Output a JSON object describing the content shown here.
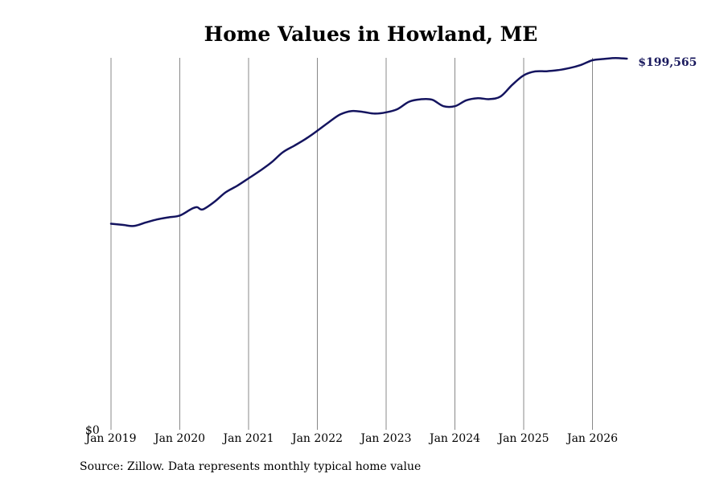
{
  "chart_data": {
    "type": "line",
    "title": "Home Values in Howland, ME",
    "xlabel": "",
    "ylabel": "",
    "grid": "vertical",
    "ylim": [
      0,
      200000
    ],
    "y_ticks": [
      {
        "value": 0,
        "label": "$0"
      }
    ],
    "x_ticks": [
      {
        "value": "2019-01",
        "label": "Jan 2019"
      },
      {
        "value": "2020-01",
        "label": "Jan 2020"
      },
      {
        "value": "2021-01",
        "label": "Jan 2021"
      },
      {
        "value": "2022-01",
        "label": "Jan 2022"
      },
      {
        "value": "2023-01",
        "label": "Jan 2023"
      },
      {
        "value": "2024-01",
        "label": "Jan 2024"
      },
      {
        "value": "2025-01",
        "label": "Jan 2025"
      },
      {
        "value": "2026-01",
        "label": "Jan 2026"
      }
    ],
    "end_label": "$199,565",
    "line_color": "#14145f",
    "series": [
      {
        "x": [
          "2019-01",
          "2019-03",
          "2019-05",
          "2019-07",
          "2019-09",
          "2019-11",
          "2020-01",
          "2020-03",
          "2020-04",
          "2020-05",
          "2020-07",
          "2020-09",
          "2020-11",
          "2021-01",
          "2021-03",
          "2021-05",
          "2021-07",
          "2021-09",
          "2021-11",
          "2022-01",
          "2022-03",
          "2022-05",
          "2022-07",
          "2022-09",
          "2022-11",
          "2023-01",
          "2023-03",
          "2023-05",
          "2023-07",
          "2023-09",
          "2023-11",
          "2024-01",
          "2024-03",
          "2024-05",
          "2024-07",
          "2024-09",
          "2024-11",
          "2025-01",
          "2025-03",
          "2025-05",
          "2025-07",
          "2025-09",
          "2025-11",
          "2026-01",
          "2026-03",
          "2026-05",
          "2026-07"
        ],
        "values": [
          110800,
          110200,
          109600,
          111400,
          113100,
          114200,
          115200,
          118700,
          119700,
          118500,
          122500,
          127700,
          131200,
          135200,
          139300,
          143800,
          149300,
          152800,
          156500,
          160800,
          165400,
          169600,
          171400,
          170900,
          170000,
          170700,
          172500,
          176400,
          177700,
          177500,
          174000,
          174000,
          177200,
          178300,
          177800,
          179300,
          185500,
          190600,
          192700,
          192800,
          193400,
          194500,
          196200,
          198700,
          199400,
          199900,
          199565
        ]
      }
    ]
  }
}
